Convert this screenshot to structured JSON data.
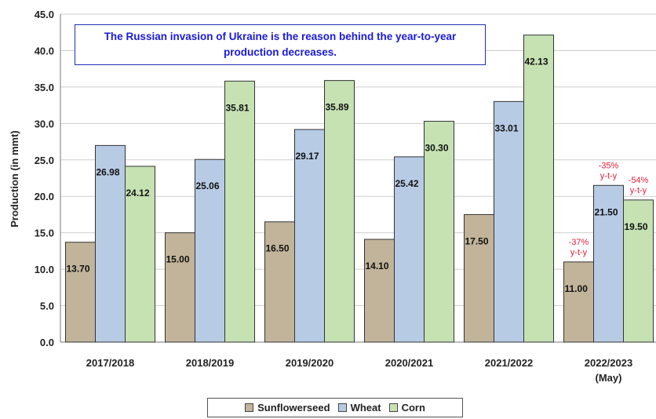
{
  "chart_data": {
    "type": "bar",
    "ylabel": "Production (in mmt)",
    "ylim": [
      0,
      45
    ],
    "ytick_step": 5,
    "ytick_labels": [
      "0.0",
      "5.0",
      "10.0",
      "15.0",
      "20.0",
      "25.0",
      "30.0",
      "35.0",
      "40.0",
      "45.0"
    ],
    "categories": [
      "2017/2018",
      "2018/2019",
      "2019/2020",
      "2020/2021",
      "2021/2022",
      "2022/2023\n(May)"
    ],
    "series": [
      {
        "name": "Sunflowerseed",
        "color": "#c2b49a",
        "values": [
          13.7,
          15.0,
          16.5,
          14.1,
          17.5,
          11.0
        ]
      },
      {
        "name": "Wheat",
        "color": "#b7cbe5",
        "values": [
          26.98,
          25.06,
          29.17,
          25.42,
          33.01,
          21.5
        ]
      },
      {
        "name": "Corn",
        "color": "#c6e2b3",
        "values": [
          24.12,
          35.81,
          35.89,
          30.3,
          42.13,
          19.5
        ]
      }
    ],
    "grid": true,
    "legend_position": "bottom",
    "callout": "The Russian invasion of Ukraine is the reason behind the year-to-year production decreases.",
    "annotations": [
      {
        "category_index": 5,
        "series_index": 0,
        "lines": [
          "-37%",
          "y-t-y"
        ],
        "color": "#e0203c"
      },
      {
        "category_index": 5,
        "series_index": 1,
        "lines": [
          "-35%",
          "y-t-y"
        ],
        "color": "#e0203c"
      },
      {
        "category_index": 5,
        "series_index": 2,
        "lines": [
          "-54%",
          "y-t-y"
        ],
        "color": "#e0203c"
      }
    ]
  }
}
